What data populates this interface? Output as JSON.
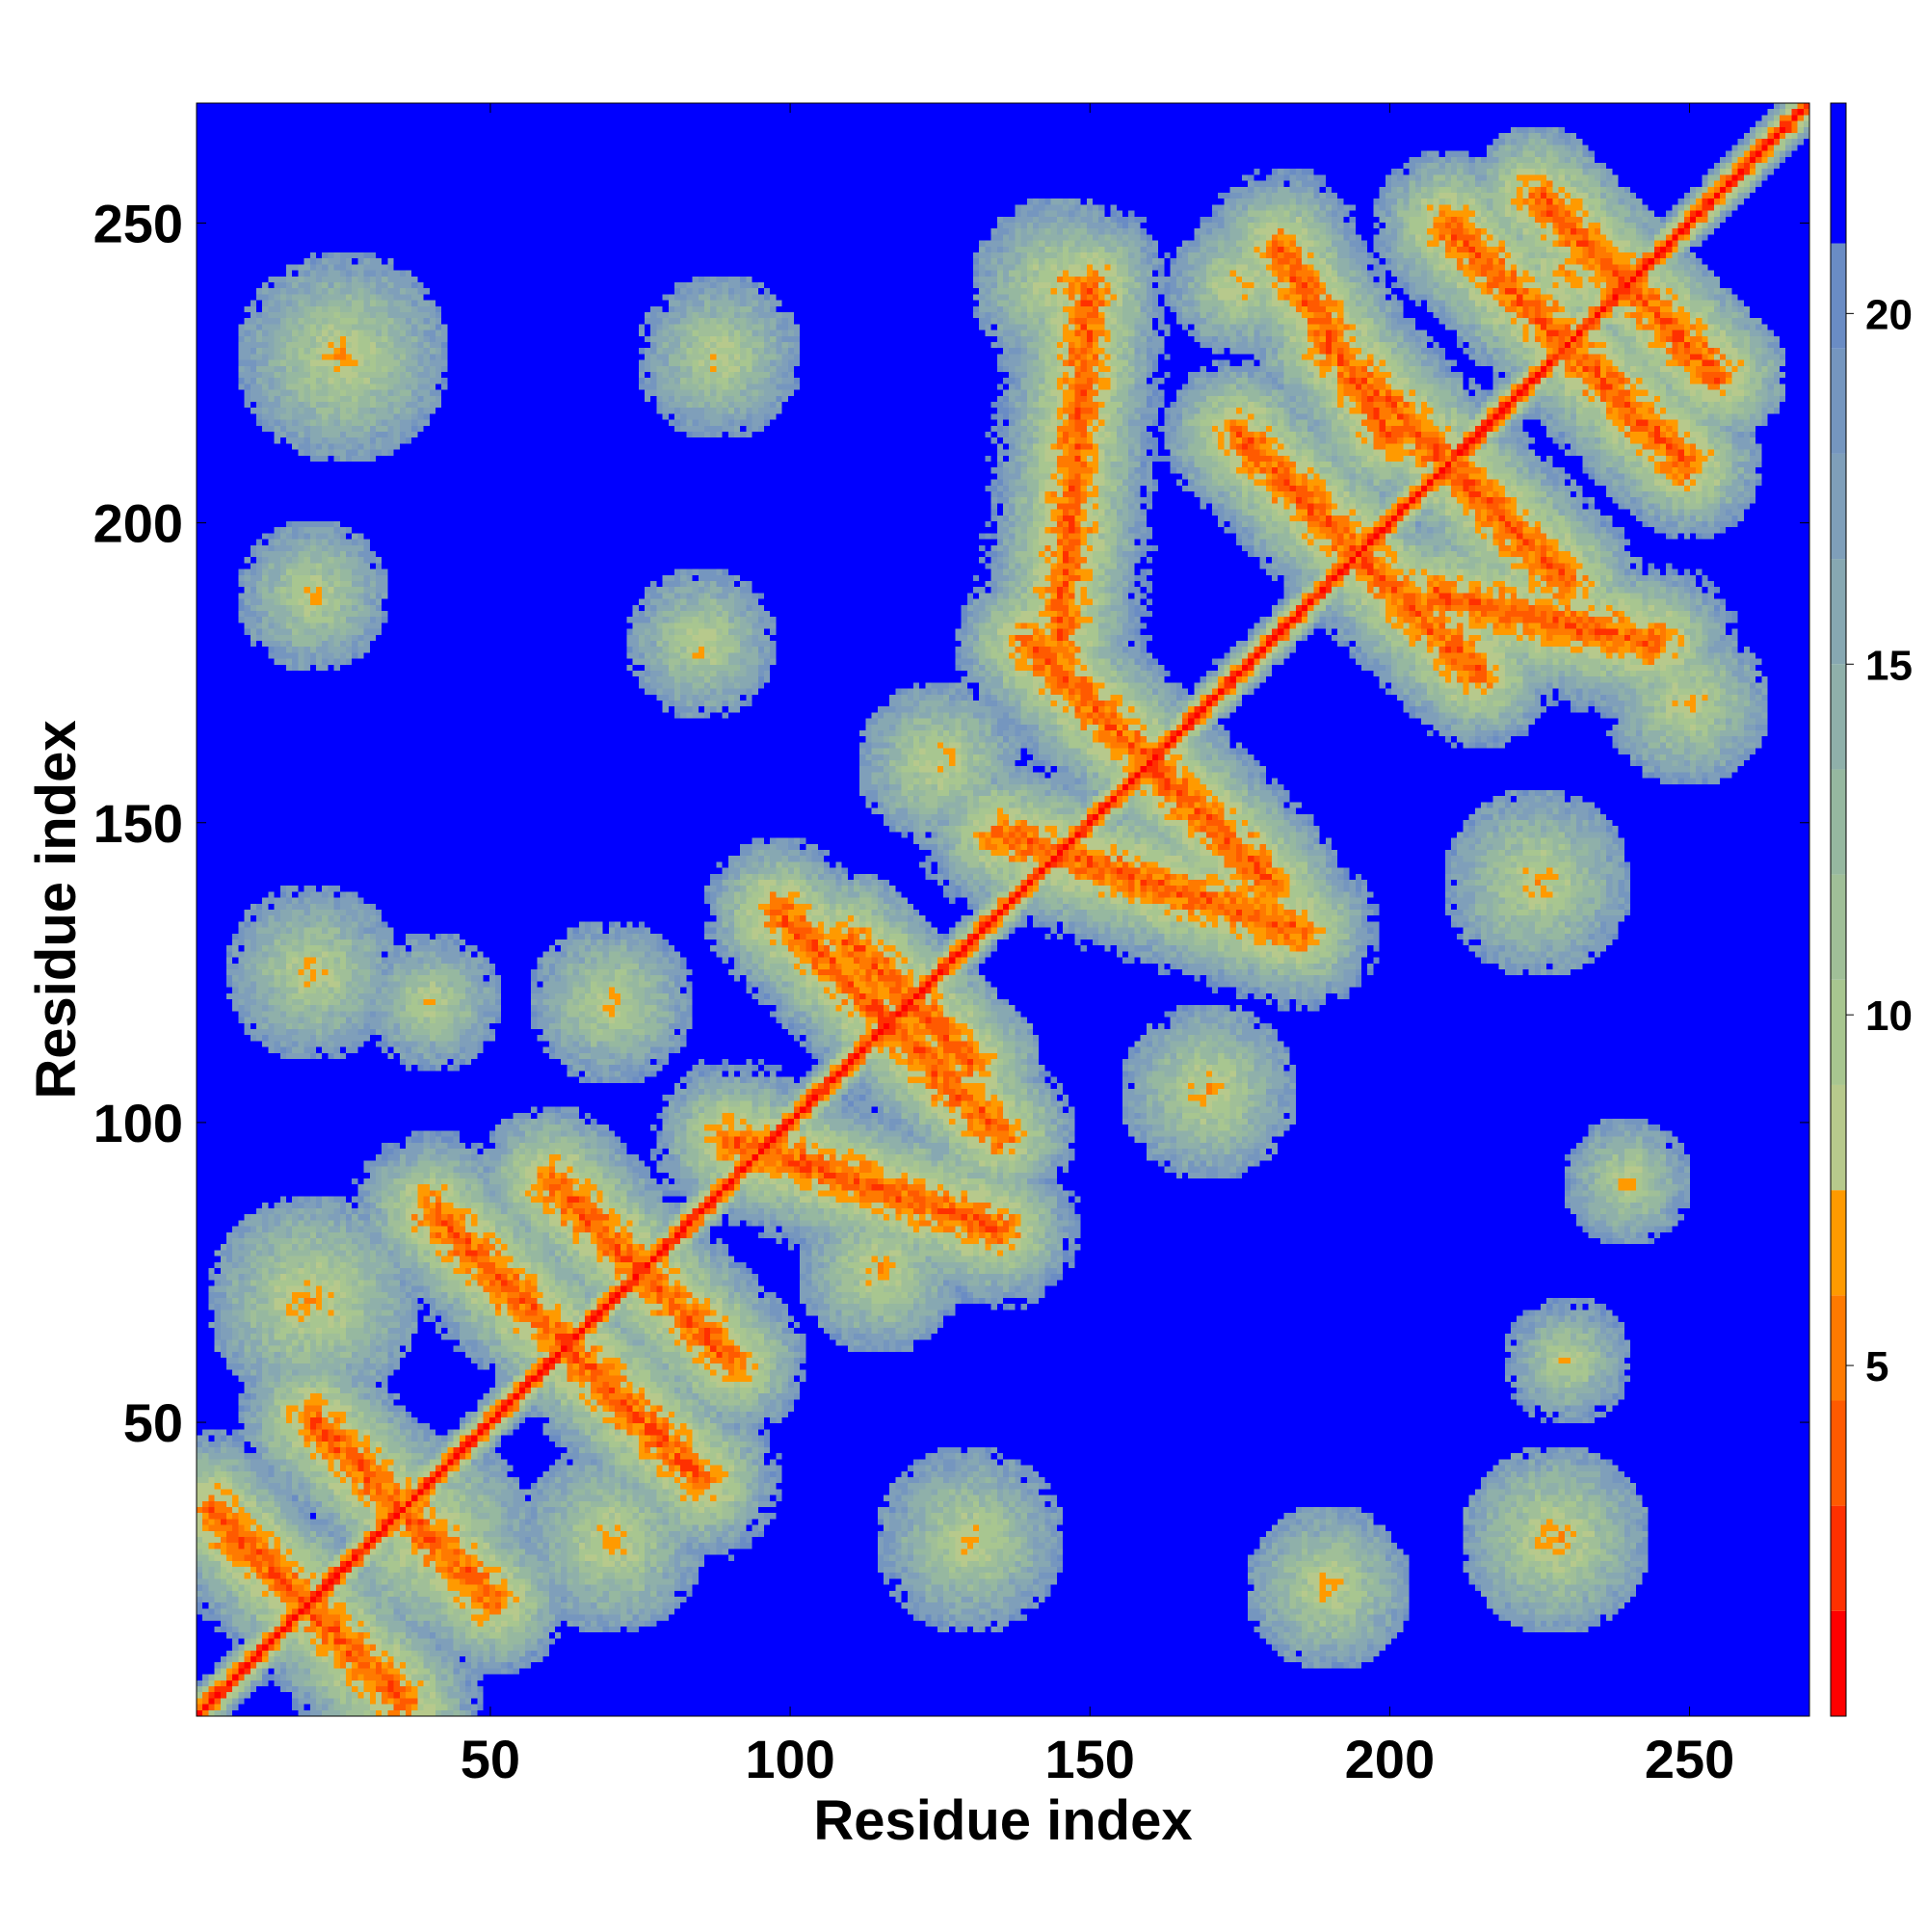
{
  "chart_data": {
    "type": "heatmap",
    "title": "",
    "xlabel": "Residue index",
    "ylabel": "Residue index",
    "n_residues": 270,
    "xlim": [
      1,
      270
    ],
    "ylim": [
      1,
      270
    ],
    "x_ticks": [
      50,
      100,
      150,
      200,
      250
    ],
    "y_ticks": [
      50,
      100,
      150,
      200,
      250
    ],
    "colorbar": {
      "ticks": [
        5,
        10,
        15,
        20
      ],
      "range": [
        0,
        23
      ],
      "levels": [
        {
          "max": 1.5,
          "color": "#ff0000"
        },
        {
          "max": 3.0,
          "color": "#ff3000"
        },
        {
          "max": 4.5,
          "color": "#ff5a00"
        },
        {
          "max": 6.0,
          "color": "#ff7a00"
        },
        {
          "max": 7.5,
          "color": "#ff9a00"
        },
        {
          "max": 9.0,
          "color": "#b7c98c"
        },
        {
          "max": 10.5,
          "color": "#a8c690"
        },
        {
          "max": 12.0,
          "color": "#a0bf98"
        },
        {
          "max": 13.5,
          "color": "#96b8a0"
        },
        {
          "max": 15.0,
          "color": "#8fb0aa"
        },
        {
          "max": 16.5,
          "color": "#87a8b2"
        },
        {
          "max": 18.0,
          "color": "#7f9fba"
        },
        {
          "max": 19.5,
          "color": "#7596bf"
        },
        {
          "max": 21.0,
          "color": "#6a8cc4"
        },
        {
          "max": 23.0,
          "color": "#0000ff"
        }
      ]
    },
    "contact_segments": [
      {
        "x1": 3,
        "y1": 35,
        "x2": 35,
        "y2": 3,
        "d": 14
      },
      {
        "x1": 20,
        "y1": 50,
        "x2": 50,
        "y2": 20,
        "d": 13
      },
      {
        "x1": 40,
        "y1": 85,
        "x2": 85,
        "y2": 40,
        "d": 14
      },
      {
        "x1": 60,
        "y1": 90,
        "x2": 90,
        "y2": 60,
        "d": 13
      },
      {
        "x1": 98,
        "y1": 135,
        "x2": 135,
        "y2": 98,
        "d": 13
      },
      {
        "x1": 110,
        "y1": 130,
        "x2": 130,
        "y2": 110,
        "d": 12
      },
      {
        "x1": 140,
        "y1": 180,
        "x2": 180,
        "y2": 140,
        "d": 13
      },
      {
        "x1": 150,
        "y1": 170,
        "x2": 170,
        "y2": 150,
        "d": 12
      },
      {
        "x1": 175,
        "y1": 215,
        "x2": 215,
        "y2": 175,
        "d": 13
      },
      {
        "x1": 190,
        "y1": 230,
        "x2": 230,
        "y2": 190,
        "d": 13
      },
      {
        "x1": 210,
        "y1": 250,
        "x2": 250,
        "y2": 210,
        "d": 13
      },
      {
        "x1": 225,
        "y1": 255,
        "x2": 255,
        "y2": 225,
        "d": 12
      },
      {
        "x1": 90,
        "y1": 97,
        "x2": 135,
        "y2": 82,
        "d": 14
      },
      {
        "x1": 135,
        "y1": 148,
        "x2": 185,
        "y2": 132,
        "d": 14
      },
      {
        "x1": 182,
        "y1": 246,
        "x2": 200,
        "y2": 215,
        "d": 14
      },
      {
        "x1": 208,
        "y1": 188,
        "x2": 245,
        "y2": 180,
        "d": 14
      },
      {
        "x1": 145,
        "y1": 180,
        "x2": 150,
        "y2": 240,
        "d": 15
      }
    ],
    "contact_blobs": [
      {
        "x": 25,
        "y": 228,
        "r": 18,
        "d": 15
      },
      {
        "x": 88,
        "y": 228,
        "r": 14,
        "d": 16
      },
      {
        "x": 20,
        "y": 188,
        "r": 13,
        "d": 16
      },
      {
        "x": 20,
        "y": 125,
        "r": 15,
        "d": 16
      },
      {
        "x": 40,
        "y": 120,
        "r": 12,
        "d": 17
      },
      {
        "x": 70,
        "y": 120,
        "r": 14,
        "d": 16
      },
      {
        "x": 85,
        "y": 180,
        "r": 13,
        "d": 16
      },
      {
        "x": 20,
        "y": 70,
        "r": 18,
        "d": 14
      },
      {
        "x": 40,
        "y": 30,
        "r": 18,
        "d": 14
      },
      {
        "x": 70,
        "y": 30,
        "r": 16,
        "d": 15
      },
      {
        "x": 115,
        "y": 75,
        "r": 14,
        "d": 15
      },
      {
        "x": 130,
        "y": 30,
        "r": 16,
        "d": 16
      },
      {
        "x": 190,
        "y": 22,
        "r": 14,
        "d": 15
      },
      {
        "x": 228,
        "y": 30,
        "r": 16,
        "d": 14
      },
      {
        "x": 230,
        "y": 60,
        "r": 11,
        "d": 17
      },
      {
        "x": 145,
        "y": 240,
        "r": 15,
        "d": 15
      },
      {
        "x": 175,
        "y": 240,
        "r": 12,
        "d": 15
      },
      {
        "x": 230,
        "y": 242,
        "r": 15,
        "d": 14
      },
      {
        "x": 245,
        "y": 215,
        "r": 13,
        "d": 14
      },
      {
        "x": 225,
        "y": 140,
        "r": 16,
        "d": 15
      },
      {
        "x": 250,
        "y": 170,
        "r": 14,
        "d": 15
      },
      {
        "x": 170,
        "y": 105,
        "r": 15,
        "d": 15
      },
      {
        "x": 125,
        "y": 160,
        "r": 14,
        "d": 15
      },
      {
        "x": 240,
        "y": 90,
        "r": 11,
        "d": 16
      }
    ]
  }
}
